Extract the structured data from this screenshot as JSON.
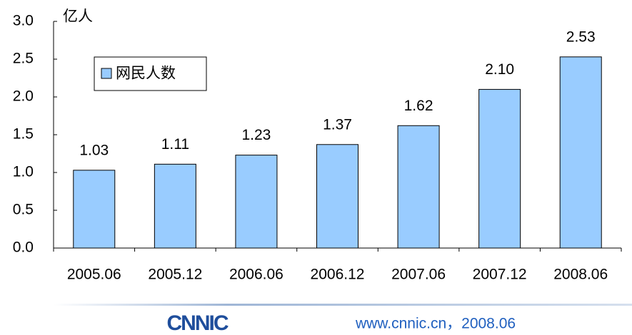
{
  "chart_data": {
    "type": "bar",
    "y_unit": "亿人",
    "categories": [
      "2005.06",
      "2005.12",
      "2006.06",
      "2006.12",
      "2007.06",
      "2007.12",
      "2008.06"
    ],
    "series": [
      {
        "name": "网民人数",
        "color": "#99ccff",
        "values": [
          1.03,
          1.11,
          1.23,
          1.37,
          1.62,
          2.1,
          2.53
        ],
        "value_labels": [
          "1.03",
          "1.11",
          "1.23",
          "1.37",
          "1.62",
          "2.10",
          "2.53"
        ]
      }
    ],
    "ylim": [
      0,
      3
    ],
    "yticks": [
      {
        "value": 0,
        "label": "0.0"
      },
      0.5,
      {
        "value": 1,
        "label": "1.0"
      },
      1.5,
      {
        "value": 2,
        "label": "2.0"
      },
      2.5,
      {
        "value": 3,
        "label": "3.0"
      }
    ],
    "legend": "upper left",
    "grid": false
  },
  "footer": {
    "logo": "CNNIC",
    "text": "www.cnnic.cn，2008.06"
  }
}
